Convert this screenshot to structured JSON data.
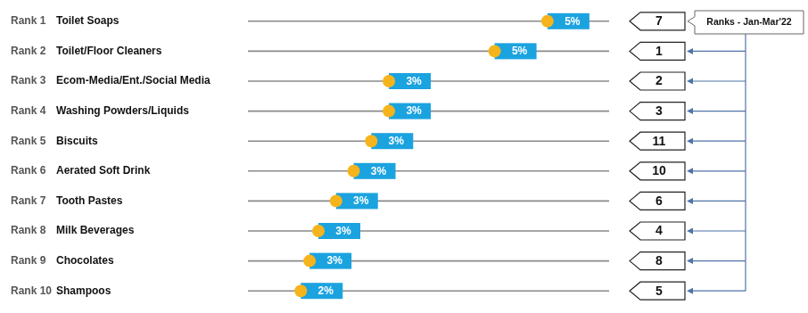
{
  "chart_data": {
    "type": "lollipop",
    "orientation": "horizontal",
    "rank_labels": [
      "Rank 1",
      "Rank 2",
      "Rank 3",
      "Rank 4",
      "Rank 5",
      "Rank 6",
      "Rank 7",
      "Rank 8",
      "Rank 9",
      "Rank 10"
    ],
    "categories": [
      "Toilet Soaps",
      "Toilet/Floor Cleaners",
      "Ecom-Media/Ent./Social Media",
      "Washing Powders/Liquids",
      "Biscuits",
      "Aerated Soft Drink",
      "Tooth Pastes",
      "Milk Beverages",
      "Chocolates",
      "Shampoos"
    ],
    "values": [
      5.2,
      4.6,
      3.4,
      3.4,
      3.2,
      3.0,
      2.8,
      2.6,
      2.5,
      2.4
    ],
    "value_labels": [
      "5%",
      "5%",
      "3%",
      "3%",
      "3%",
      "3%",
      "3%",
      "3%",
      "3%",
      "2%"
    ],
    "color": "#f6b41c",
    "data_labels": true,
    "xlim": [
      1.8,
      5.9
    ],
    "tick_labels": false,
    "grid": false,
    "previous_ranks": {
      "title": "Ranks - Jan-Mar'22",
      "values": [
        7,
        1,
        2,
        3,
        11,
        10,
        6,
        4,
        8,
        5
      ]
    }
  }
}
